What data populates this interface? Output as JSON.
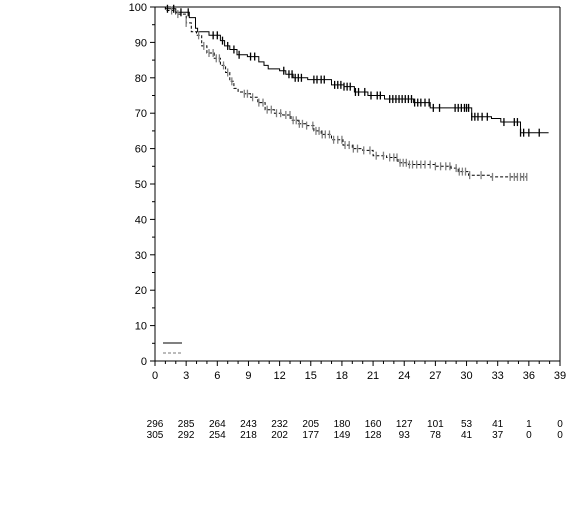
{
  "chart_data": {
    "type": "line",
    "subtype": "kaplan-meier",
    "title": "",
    "xlabel": "",
    "ylabel": "",
    "xlim": [
      0,
      39
    ],
    "ylim": [
      0,
      100
    ],
    "x_ticks": [
      0,
      3,
      6,
      9,
      12,
      15,
      18,
      21,
      24,
      27,
      30,
      33,
      36,
      39
    ],
    "y_ticks": [
      0,
      10,
      20,
      30,
      40,
      50,
      60,
      70,
      80,
      90,
      100
    ],
    "grid": false,
    "legend": {
      "placement": "bottom-left",
      "entries": [
        "",
        ""
      ]
    },
    "series": [
      {
        "style": "solid",
        "color": "#000000",
        "censor_color": "#000000",
        "points": [
          [
            0,
            100
          ],
          [
            1.0,
            99.5
          ],
          [
            2.0,
            98.5
          ],
          [
            3.3,
            97
          ],
          [
            3.9,
            94
          ],
          [
            4.1,
            93
          ],
          [
            5.2,
            92
          ],
          [
            6.3,
            90.5
          ],
          [
            6.7,
            89
          ],
          [
            7.2,
            88
          ],
          [
            7.9,
            86.5
          ],
          [
            8.9,
            86
          ],
          [
            10.0,
            84.5
          ],
          [
            10.5,
            83.5
          ],
          [
            10.9,
            82.5
          ],
          [
            12.0,
            82
          ],
          [
            12.6,
            81
          ],
          [
            13.3,
            80
          ],
          [
            14.7,
            79.5
          ],
          [
            17.0,
            78
          ],
          [
            18.2,
            77.5
          ],
          [
            19.2,
            76
          ],
          [
            20.5,
            75
          ],
          [
            22.1,
            74
          ],
          [
            24.9,
            73
          ],
          [
            26.5,
            71.5
          ],
          [
            29.5,
            71.5
          ],
          [
            30.5,
            69
          ],
          [
            32.4,
            68.5
          ],
          [
            33.3,
            67.5
          ],
          [
            35.2,
            64.5
          ],
          [
            37.9,
            64.5
          ]
        ],
        "censor_x": [
          1.2,
          1.8,
          2.5,
          3.2,
          5.6,
          6.0,
          6.5,
          7.0,
          7.6,
          8.1,
          9.2,
          9.6,
          12.4,
          12.9,
          13.2,
          13.5,
          13.8,
          14.1,
          15.3,
          15.6,
          16.0,
          16.3,
          17.3,
          17.6,
          17.9,
          18.2,
          18.5,
          18.8,
          19.3,
          19.6,
          20.2,
          20.8,
          21.4,
          21.7,
          22.6,
          22.9,
          23.2,
          23.5,
          23.8,
          24.1,
          24.4,
          24.7,
          25.0,
          25.3,
          25.6,
          26.0,
          26.4,
          26.8,
          27.4,
          28.9,
          29.2,
          29.5,
          29.8,
          30.0,
          30.2,
          30.5,
          30.8,
          31.1,
          31.5,
          32.0,
          33.6,
          34.6,
          34.9,
          35.2,
          35.5,
          36.0,
          37.0
        ]
      },
      {
        "style": "dashed",
        "color": "#000000",
        "censor_color": "#808080",
        "points": [
          [
            0,
            100
          ],
          [
            1.0,
            99
          ],
          [
            2.0,
            98
          ],
          [
            3.0,
            95.5
          ],
          [
            3.5,
            93
          ],
          [
            4.0,
            92
          ],
          [
            4.5,
            89
          ],
          [
            5.0,
            87
          ],
          [
            5.7,
            85.5
          ],
          [
            6.3,
            83.5
          ],
          [
            6.8,
            81.5
          ],
          [
            7.2,
            79
          ],
          [
            7.6,
            77
          ],
          [
            8.0,
            76
          ],
          [
            8.6,
            75.5
          ],
          [
            9.2,
            74.5
          ],
          [
            9.9,
            73
          ],
          [
            10.6,
            71
          ],
          [
            11.5,
            70
          ],
          [
            12.3,
            69.5
          ],
          [
            13.1,
            68
          ],
          [
            13.8,
            67
          ],
          [
            14.6,
            66.5
          ],
          [
            15.3,
            65
          ],
          [
            16.0,
            64
          ],
          [
            17.0,
            62.5
          ],
          [
            18.1,
            61
          ],
          [
            19.0,
            60
          ],
          [
            20.0,
            59.5
          ],
          [
            21.0,
            58
          ],
          [
            22.3,
            57.5
          ],
          [
            23.4,
            56
          ],
          [
            24.4,
            55.5
          ],
          [
            25.6,
            55.5
          ],
          [
            27.0,
            55
          ],
          [
            28.5,
            54.5
          ],
          [
            29.2,
            53.5
          ],
          [
            30.2,
            52.5
          ],
          [
            31.0,
            52.5
          ],
          [
            32.2,
            52
          ],
          [
            35.8,
            52
          ]
        ],
        "censor_x": [
          1.6,
          2.2,
          3.0,
          4.2,
          4.7,
          5.2,
          5.6,
          5.9,
          6.2,
          6.6,
          7.0,
          7.4,
          8.6,
          8.9,
          9.4,
          10.0,
          10.4,
          10.8,
          11.2,
          11.7,
          12.1,
          12.6,
          13.0,
          13.3,
          13.6,
          13.9,
          14.2,
          14.6,
          15.2,
          15.5,
          15.8,
          16.1,
          16.4,
          16.8,
          17.2,
          17.6,
          18.0,
          18.3,
          18.7,
          19.1,
          19.5,
          20.1,
          20.7,
          21.3,
          22.0,
          22.6,
          23.0,
          23.3,
          23.6,
          23.9,
          24.2,
          24.5,
          24.8,
          25.2,
          25.6,
          26.0,
          26.5,
          27.0,
          27.5,
          28.0,
          28.4,
          29.0,
          29.3,
          29.6,
          29.9,
          30.3,
          31.4,
          32.5,
          34.2,
          34.6,
          34.9,
          35.2,
          35.5,
          35.8
        ]
      }
    ],
    "risk_table": {
      "times": [
        0,
        3,
        6,
        9,
        12,
        15,
        18,
        21,
        24,
        27,
        30,
        33,
        36,
        39
      ],
      "rows": [
        [
          296,
          285,
          264,
          243,
          232,
          205,
          180,
          160,
          127,
          101,
          53,
          41,
          1,
          0
        ],
        [
          305,
          292,
          254,
          218,
          202,
          177,
          149,
          128,
          93,
          78,
          41,
          37,
          0,
          0
        ]
      ]
    }
  }
}
